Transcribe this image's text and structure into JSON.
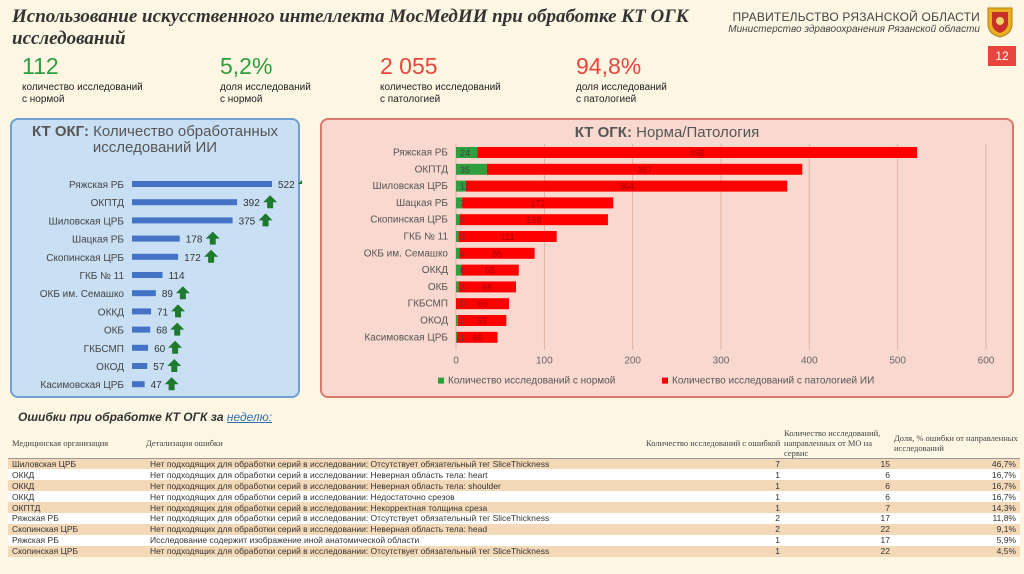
{
  "header": {
    "title": "Использование искусственного интеллекта МосМедИИ при обработке КТ ОГК исследований",
    "gov_name": "ПРАВИТЕЛЬСТВО РЯЗАНСКОЙ ОБЛАСТИ",
    "ministry": "Министерство здравоохранения Рязанской области",
    "page_number": "12"
  },
  "kpis": [
    {
      "value": "112",
      "label1": "количество исследований",
      "label2": "с нормой",
      "color": "#2e9e3e"
    },
    {
      "value": "5,2%",
      "label1": "доля исследований",
      "label2": "с нормой",
      "color": "#2e9e3e"
    },
    {
      "value": "2 055",
      "label1": "количество исследований",
      "label2": "с патологией",
      "color": "#e8453c"
    },
    {
      "value": "94,8%",
      "label1": "доля исследований",
      "label2": "с патологией",
      "color": "#e8453c"
    }
  ],
  "left_panel": {
    "title_bold": "КТ ОКГ:",
    "title_rest": "Количество обработанных исследований ИИ"
  },
  "right_panel": {
    "title_bold": "КТ ОГК:",
    "title_rest": "Норма/Патология"
  },
  "chart_data": [
    {
      "type": "bar",
      "orientation": "horizontal",
      "categories": [
        "Ряжская РБ",
        "ОКПТД",
        "Шиловская ЦРБ",
        "Шацкая РБ",
        "Скопинская ЦРБ",
        "ГКБ № 11",
        "ОКБ им. Семашко",
        "ОККД",
        "ОКБ",
        "ГКБСМП",
        "ОКОД",
        "Касимовская ЦРБ"
      ],
      "values": [
        522,
        392,
        375,
        178,
        172,
        114,
        89,
        71,
        68,
        60,
        57,
        47
      ],
      "trend_up": [
        true,
        true,
        true,
        true,
        true,
        false,
        true,
        true,
        true,
        true,
        true,
        true
      ],
      "bar_color": "#4472c4",
      "arrow_color": "#1f7a30"
    },
    {
      "type": "bar",
      "orientation": "horizontal",
      "stacked": true,
      "categories": [
        "Ряжская РБ",
        "ОКПТД",
        "Шиловская ЦРБ",
        "Шацкая РБ",
        "Скопинская ЦРБ",
        "ГКБ № 11",
        "ОКБ им. Семашко",
        "ОККД",
        "ОКБ",
        "ГКБСМП",
        "ОКОД",
        "Касимовская ЦРБ"
      ],
      "series": [
        {
          "name": "Количество исследований с нормой",
          "color": "#2e9e3e",
          "values": [
            24,
            35,
            11,
            7,
            4,
            3,
            4,
            6,
            3,
            0,
            2,
            1
          ]
        },
        {
          "name": "Количество исследований с патологией ИИ",
          "color": "#ff0000",
          "values": [
            498,
            357,
            364,
            171,
            168,
            111,
            85,
            65,
            65,
            60,
            55,
            46
          ]
        }
      ],
      "xlim": [
        0,
        600
      ],
      "xticks": [
        0,
        100,
        200,
        300,
        400,
        500,
        600
      ],
      "legend_position": "bottom"
    }
  ],
  "errors": {
    "title_main": "Ошибки при обработке КТ ОГК за",
    "title_period": "неделю:",
    "headers": [
      "Медицинская организация",
      "Детализация ошибки",
      "Количество исследований с ошибкой",
      "Количество исследований, направленных от МО на сервис",
      "Доля, % ошибки от направленных исследований"
    ],
    "rows": [
      [
        "Шиловская ЦРБ",
        "Нет подходящих для обработки серий в исследовании: Отсутствует обязательный тег SliceThickness",
        "7",
        "15",
        "46,7%"
      ],
      [
        "ОККД",
        "Нет подходящих для обработки серий в исследовании: Неверная область тела: heart",
        "1",
        "6",
        "16,7%"
      ],
      [
        "ОККД",
        "Нет подходящих для обработки серий в исследовании: Неверная область тела: shoulder",
        "1",
        "6",
        "16,7%"
      ],
      [
        "ОККД",
        "Нет подходящих для обработки серий в исследовании: Недостаточно срезов",
        "1",
        "6",
        "16,7%"
      ],
      [
        "ОКПТД",
        "Нет подходящих для обработки серий в исследовании: Некорректная толщина среза",
        "1",
        "7",
        "14,3%"
      ],
      [
        "Ряжская РБ",
        "Нет подходящих для обработки серий в исследовании: Отсутствует обязательный тег SliceThickness",
        "2",
        "17",
        "11,8%"
      ],
      [
        "Скопинская ЦРБ",
        "Нет подходящих для обработки серий в исследовании: Неверная область тела: head",
        "2",
        "22",
        "9,1%"
      ],
      [
        "Ряжская РБ",
        "Исследование содержит изображение иной анатомической области",
        "1",
        "17",
        "5,9%"
      ],
      [
        "Скопинская ЦРБ",
        "Нет подходящих для обработки серий в исследовании: Отсутствует обязательный тег SliceThickness",
        "1",
        "22",
        "4,5%"
      ]
    ]
  }
}
